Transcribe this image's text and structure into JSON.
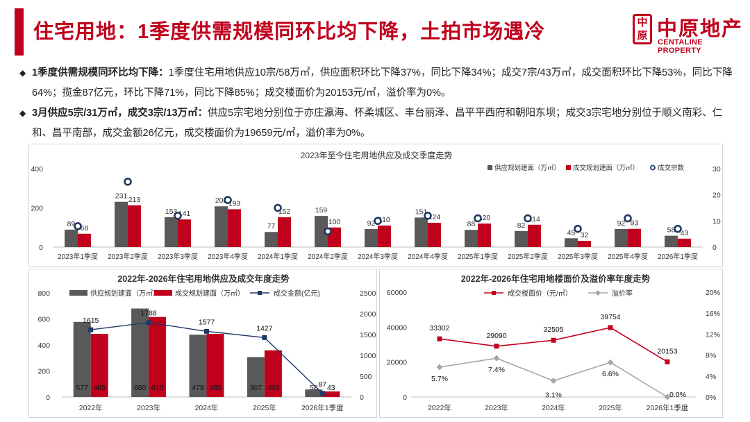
{
  "header": {
    "title": "住宅用地：1季度供需规模同环比均下降，土拍市场遇冷",
    "logo_mark": "中原",
    "logo_cn": "中原地产",
    "logo_en": "CENTALINE PROPERTY"
  },
  "bullets": [
    {
      "bold": "1季度供需规模同环比均下降：",
      "text": "1季度住宅用地供应10宗/58万㎡，供应面积环比下降37%，同比下降34%；成交7宗/43万㎡，成交面积环比下降53%，同比下降64%；揽金87亿元，环比下降71%，同比下降85%；成交楼面价为20153元/㎡，溢价率为0%。"
    },
    {
      "bold": "3月供应5宗/31万㎡，成交3宗/13万㎡：",
      "text": "供应5宗宅地分别位于亦庄瀛海、怀柔城区、丰台丽泽、昌平平西府和朝阳东坝；成交3宗宅地分别位于顺义南彩、仁和、昌平南部，成交金额26亿元，成交楼面价为19659元/㎡，溢价率为0%。"
    }
  ],
  "chart_data": [
    {
      "type": "bar",
      "title": "2023年至今住宅用地供应及成交季度走势",
      "categories": [
        "2023年1季度",
        "2023年2季度",
        "2023年3季度",
        "2023年4季度",
        "2024年1季度",
        "2024年2季度",
        "2024年3季度",
        "2024年4季度",
        "2025年1季度",
        "2025年2季度",
        "2025年3季度",
        "2025年4季度",
        "2026年1季度"
      ],
      "series": [
        {
          "name": "供应规划建面（万㎡）",
          "axis": "left",
          "color": "#595959",
          "values": [
            89,
            231,
            153,
            208,
            77,
            159,
            92,
            151,
            88,
            82,
            45,
            92,
            58
          ]
        },
        {
          "name": "成交规划建面（万㎡）",
          "axis": "left",
          "color": "#c0001d",
          "values": [
            68,
            213,
            141,
            193,
            152,
            100,
            110,
            124,
            120,
            114,
            32,
            93,
            43
          ]
        },
        {
          "name": "成交宗数",
          "axis": "right",
          "type": "scatter",
          "color": "#1f3864",
          "values": [
            8,
            25,
            12,
            18,
            15,
            6,
            10,
            12,
            11,
            11,
            7,
            11,
            7
          ]
        }
      ],
      "ylim": [
        0,
        400
      ],
      "yticks": [
        "0",
        "200",
        "400"
      ],
      "y2lim": [
        0,
        30
      ],
      "y2ticks": [
        "0",
        "10",
        "20",
        "30"
      ],
      "legend": [
        "供应规划建面（万㎡）",
        "成交规划建面（万㎡）",
        "成交宗数"
      ]
    },
    {
      "type": "bar",
      "title": "2022年-2026年住宅用地供应及成交年度走势",
      "categories": [
        "2022年",
        "2023年",
        "2024年",
        "2025年",
        "2026年1季度"
      ],
      "series": [
        {
          "name": "供应规划建面（万㎡）",
          "axis": "left",
          "color": "#595959",
          "values": [
            577,
            680,
            479,
            307,
            58
          ]
        },
        {
          "name": "成交规划建面（万㎡）",
          "axis": "left",
          "color": "#c0001d",
          "values": [
            485,
            615,
            485,
            359,
            43
          ]
        },
        {
          "name": "成交金额(亿元)",
          "axis": "right",
          "type": "line",
          "color": "#1f3864",
          "values": [
            1615,
            1788,
            1577,
            1427,
            87
          ]
        }
      ],
      "ylim": [
        0,
        800
      ],
      "yticks": [
        "0",
        "200",
        "400",
        "600",
        "800"
      ],
      "y2lim": [
        0,
        2500
      ],
      "y2ticks": [
        "0",
        "500",
        "1000",
        "1500",
        "2000",
        "2500"
      ],
      "legend": [
        "供应规划建面（万㎡）",
        "成交规划建面（万㎡）",
        "成交金额(亿元)"
      ]
    },
    {
      "type": "line",
      "title": "2022年-2026年住宅用地楼面价及溢价率年度走势",
      "categories": [
        "2022年",
        "2023年",
        "2024年",
        "2025年",
        "2026年1季度"
      ],
      "series": [
        {
          "name": "成交楼面价（元/㎡）",
          "axis": "left",
          "color": "#c0001d",
          "values": [
            33302,
            29090,
            32505,
            39754,
            20153
          ]
        },
        {
          "name": "溢价率",
          "axis": "right",
          "color": "#a6a6a6",
          "values": [
            5.7,
            7.4,
            3.1,
            6.6,
            0.0
          ],
          "labels": [
            "5.7%",
            "7.4%",
            "3.1%",
            "6.6%",
            "0.0%"
          ]
        }
      ],
      "ylim": [
        0,
        60000
      ],
      "yticks": [
        "0",
        "20000",
        "40000",
        "60000"
      ],
      "y2lim": [
        0,
        20
      ],
      "y2ticks": [
        "0%",
        "4%",
        "8%",
        "12%",
        "16%",
        "20%"
      ],
      "legend": [
        "成交楼面价（元/㎡）",
        "溢价率"
      ]
    }
  ]
}
